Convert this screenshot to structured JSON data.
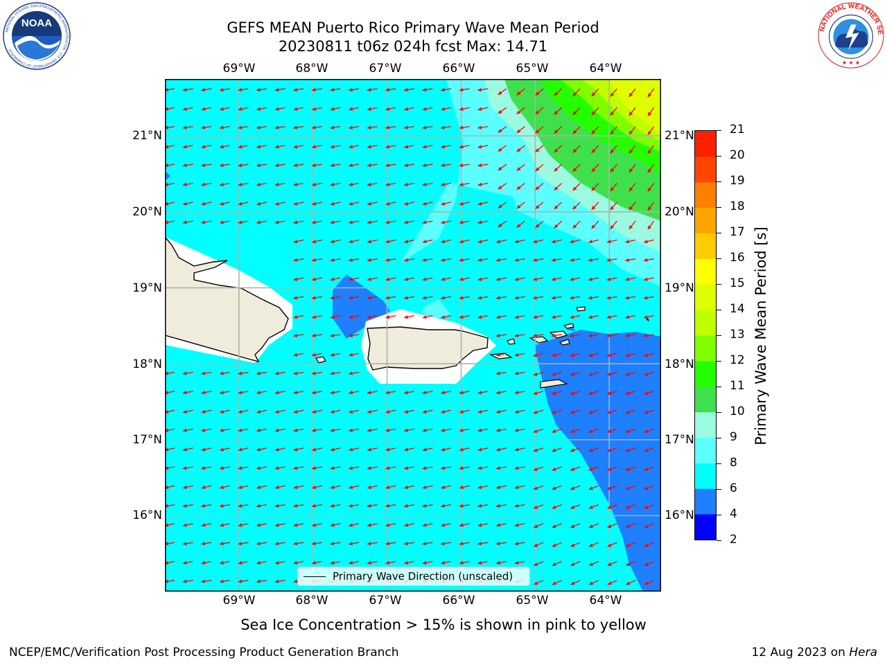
{
  "title": {
    "line1": "GEFS MEAN Puerto Rico Primary Wave Mean Period",
    "line2": "20230811 t06z 024h fcst   Max: 14.71"
  },
  "logos": {
    "noaa": {
      "icon": "noaa-logo-icon",
      "text": "NOAA",
      "ring_text": "NATIONAL OCEANIC AND ATMOSPHERIC ADMINISTRATION · U.S. DEPARTMENT OF COMMERCE"
    },
    "nws": {
      "icon": "nws-logo-icon",
      "ring_text": "NATIONAL WEATHER SERVICE"
    }
  },
  "map": {
    "lon_labels": [
      "69°W",
      "68°W",
      "67°W",
      "66°W",
      "65°W",
      "64°W"
    ],
    "lat_labels": [
      "21°N",
      "20°N",
      "19°N",
      "18°N",
      "17°N",
      "16°N"
    ],
    "lon_values": [
      -69,
      -68,
      -67,
      -66,
      -65,
      -64
    ],
    "lat_values": [
      21,
      20,
      19,
      18,
      17,
      16
    ],
    "lon_range": [
      -70.0,
      -63.3
    ],
    "lat_range": [
      15.0,
      21.75
    ],
    "grid": true,
    "arrow_color": "#ff0000",
    "coast_color": "#000000",
    "land_color": "#efecdc",
    "legend_label": "Primary Wave Direction (unscaled)"
  },
  "colorbar": {
    "title": "Primary Wave Mean Period [s]",
    "levels": [
      2,
      4,
      6,
      8,
      9,
      10,
      11,
      12,
      13,
      14,
      15,
      16,
      17,
      18,
      19,
      20,
      21
    ],
    "labels": [
      "21",
      "20",
      "19",
      "18",
      "17",
      "16",
      "15",
      "14",
      "13",
      "12",
      "11",
      "10",
      "9",
      "8",
      "6",
      "4",
      "2"
    ],
    "colors": [
      "#0000ff",
      "#1e7fff",
      "#00ffff",
      "#5cffff",
      "#9afbe0",
      "#3ee04c",
      "#24ff00",
      "#7fff00",
      "#bfff00",
      "#ddff00",
      "#ffff00",
      "#ffcc00",
      "#ffa500",
      "#ff7f00",
      "#ff4500",
      "#ff2000"
    ]
  },
  "subtitle": "Sea Ice Concentration > 15% is shown in pink to yellow",
  "footer": {
    "left": "NCEP/EMC/Verification Post Processing Product Generation Branch",
    "right_prefix": "12 Aug 2023 on ",
    "right_host": "Hera"
  }
}
